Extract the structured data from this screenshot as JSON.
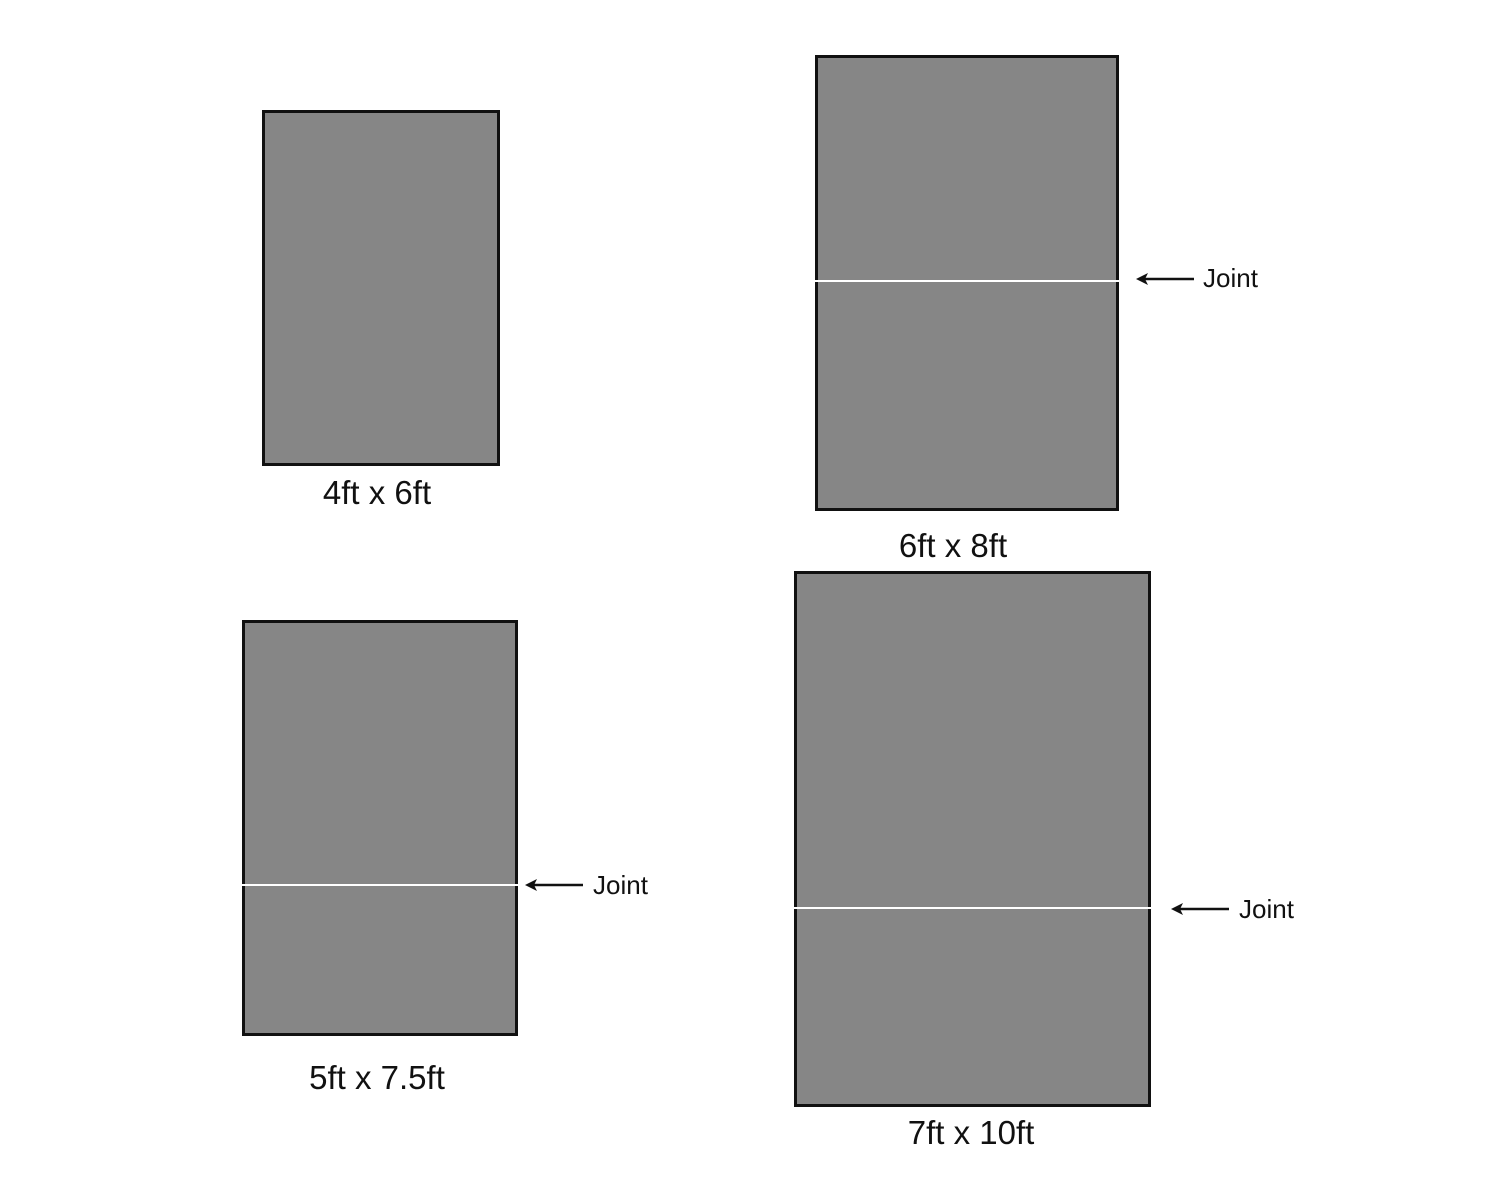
{
  "panels": [
    {
      "size_label": "4ft x 6ft",
      "has_joint": false
    },
    {
      "size_label": "6ft x 8ft",
      "has_joint": true,
      "joint_label": "Joint"
    },
    {
      "size_label": "5ft x 7.5ft",
      "has_joint": true,
      "joint_label": "Joint"
    },
    {
      "size_label": "7ft x 10ft",
      "has_joint": true,
      "joint_label": "Joint"
    }
  ],
  "colors": {
    "panel_fill": "#868686",
    "border": "#111111",
    "joint_line": "#ffffff"
  }
}
